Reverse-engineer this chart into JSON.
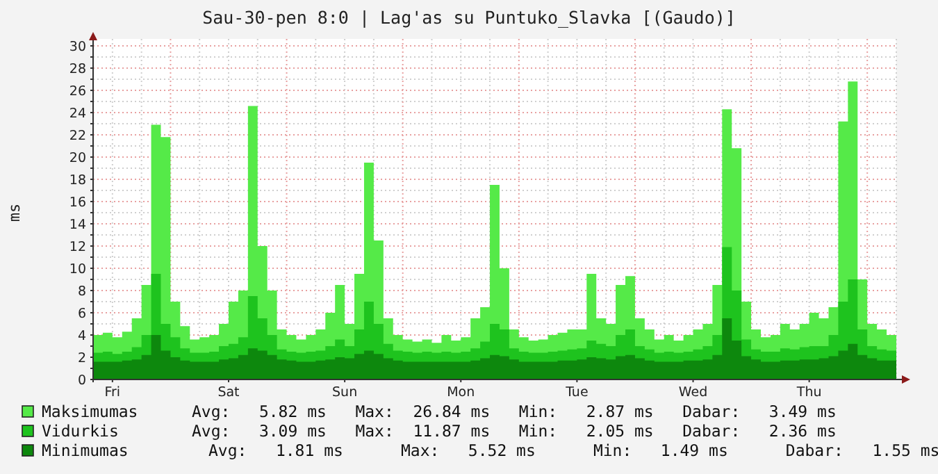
{
  "chart_data": {
    "type": "area",
    "title": "Sau-30-pen 8:0 | Lag'as su Puntuko_Slavka [(Gaudo)]",
    "ylabel": "ms",
    "categories": [
      null,
      null,
      "Fri",
      null,
      null,
      null,
      null,
      null,
      null,
      null,
      null,
      null,
      null,
      null,
      "Sat",
      null,
      null,
      null,
      null,
      null,
      null,
      null,
      null,
      null,
      null,
      null,
      "Sun",
      null,
      null,
      null,
      null,
      null,
      null,
      null,
      null,
      null,
      null,
      null,
      "Mon",
      null,
      null,
      null,
      null,
      null,
      null,
      null,
      null,
      null,
      null,
      null,
      "Tue",
      null,
      null,
      null,
      null,
      null,
      null,
      null,
      null,
      null,
      null,
      null,
      "Wed",
      null,
      null,
      null,
      null,
      null,
      null,
      null,
      null,
      null,
      null,
      null,
      "Thu",
      null,
      null,
      null,
      null,
      null,
      null,
      null,
      null,
      null
    ],
    "series": [
      {
        "name": "Maksimumas",
        "color": "#55ea48",
        "values": [
          4.0,
          4.2,
          3.8,
          4.3,
          5.5,
          8.5,
          22.9,
          21.8,
          7.0,
          4.8,
          3.6,
          3.8,
          4.0,
          5.0,
          7.0,
          8.0,
          24.6,
          12.0,
          8.0,
          4.5,
          4.0,
          3.6,
          4.0,
          4.5,
          6.0,
          8.5,
          5.0,
          9.5,
          19.5,
          12.5,
          5.5,
          4.0,
          3.6,
          3.4,
          3.6,
          3.3,
          4.0,
          3.5,
          3.8,
          5.5,
          6.5,
          17.5,
          10.0,
          4.5,
          3.8,
          3.5,
          3.6,
          4.0,
          4.2,
          4.5,
          4.5,
          9.5,
          5.5,
          5.0,
          8.5,
          9.3,
          5.5,
          4.5,
          3.6,
          4.0,
          3.5,
          4.0,
          4.5,
          5.0,
          8.5,
          24.3,
          20.8,
          7.0,
          4.5,
          3.8,
          4.0,
          5.0,
          4.5,
          5.0,
          6.0,
          5.5,
          6.5,
          23.2,
          26.8,
          9.0,
          5.0,
          4.5,
          4.0,
          3.5
        ]
      },
      {
        "name": "Vidurkis",
        "color": "#1ec31e",
        "values": [
          2.4,
          2.5,
          2.3,
          2.5,
          2.9,
          4.0,
          9.5,
          5.0,
          3.8,
          2.8,
          2.4,
          2.4,
          2.5,
          3.0,
          3.2,
          3.8,
          7.5,
          5.5,
          4.0,
          2.7,
          2.5,
          2.4,
          2.5,
          2.6,
          3.0,
          3.6,
          3.0,
          4.5,
          7.0,
          5.0,
          3.2,
          2.6,
          2.5,
          2.4,
          2.5,
          2.4,
          2.5,
          2.4,
          2.5,
          2.8,
          3.4,
          5.0,
          4.5,
          2.8,
          2.5,
          2.4,
          2.4,
          2.5,
          2.6,
          2.7,
          2.8,
          3.5,
          3.2,
          3.0,
          4.0,
          4.5,
          3.0,
          2.7,
          2.4,
          2.5,
          2.4,
          2.5,
          2.7,
          3.0,
          4.0,
          11.9,
          8.0,
          3.6,
          2.7,
          2.5,
          2.5,
          2.8,
          2.7,
          2.9,
          3.0,
          3.0,
          4.0,
          7.0,
          9.0,
          4.5,
          3.0,
          2.7,
          2.6,
          2.4
        ]
      },
      {
        "name": "Minimumas",
        "color": "#0d880d",
        "values": [
          1.6,
          1.6,
          1.6,
          1.7,
          1.8,
          2.2,
          4.0,
          2.6,
          2.0,
          1.7,
          1.6,
          1.6,
          1.6,
          1.8,
          1.9,
          2.2,
          2.8,
          2.6,
          2.2,
          1.8,
          1.7,
          1.6,
          1.6,
          1.7,
          1.8,
          2.0,
          1.9,
          2.3,
          2.6,
          2.3,
          1.9,
          1.7,
          1.6,
          1.6,
          1.6,
          1.6,
          1.6,
          1.6,
          1.6,
          1.7,
          1.9,
          2.2,
          2.1,
          1.8,
          1.6,
          1.6,
          1.6,
          1.6,
          1.7,
          1.7,
          1.8,
          2.0,
          1.9,
          1.8,
          2.1,
          2.2,
          1.9,
          1.7,
          1.6,
          1.6,
          1.6,
          1.7,
          1.7,
          1.8,
          2.2,
          5.5,
          3.5,
          2.1,
          1.8,
          1.6,
          1.6,
          1.7,
          1.7,
          1.8,
          1.8,
          1.9,
          2.1,
          2.6,
          3.2,
          2.2,
          1.9,
          1.7,
          1.7,
          1.6
        ]
      }
    ],
    "ylim": [
      0,
      30
    ],
    "yticks": [
      0,
      {
        "value": 1,
        "label": null
      },
      2,
      {
        "value": 3,
        "label": null
      },
      4,
      {
        "value": 5,
        "label": null
      },
      6,
      {
        "value": 7,
        "label": null
      },
      8,
      {
        "value": 9,
        "label": null
      },
      10,
      {
        "value": 11,
        "label": null
      },
      12,
      {
        "value": 13,
        "label": null
      },
      14,
      {
        "value": 15,
        "label": null
      },
      16,
      {
        "value": 17,
        "label": null
      },
      18,
      {
        "value": 19,
        "label": null
      },
      20,
      {
        "value": 21,
        "label": null
      },
      22,
      {
        "value": 23,
        "label": null
      },
      24,
      {
        "value": 25,
        "label": null
      },
      26,
      {
        "value": 27,
        "label": null
      },
      28,
      {
        "value": 29,
        "label": null
      },
      30
    ],
    "grid": true,
    "legend": "bottom",
    "annotations": [
      "Avg:   5.82 ms   Max:  26.84 ms   Min:   2.87 ms   Dabar:   3.49 ms",
      "Avg:   3.09 ms   Max:  11.87 ms   Min:   2.05 ms   Dabar:   2.36 ms",
      "Avg:   1.81 ms      Max:   5.52 ms      Min:   1.49 ms      Dabar:   1.55 ms"
    ]
  }
}
